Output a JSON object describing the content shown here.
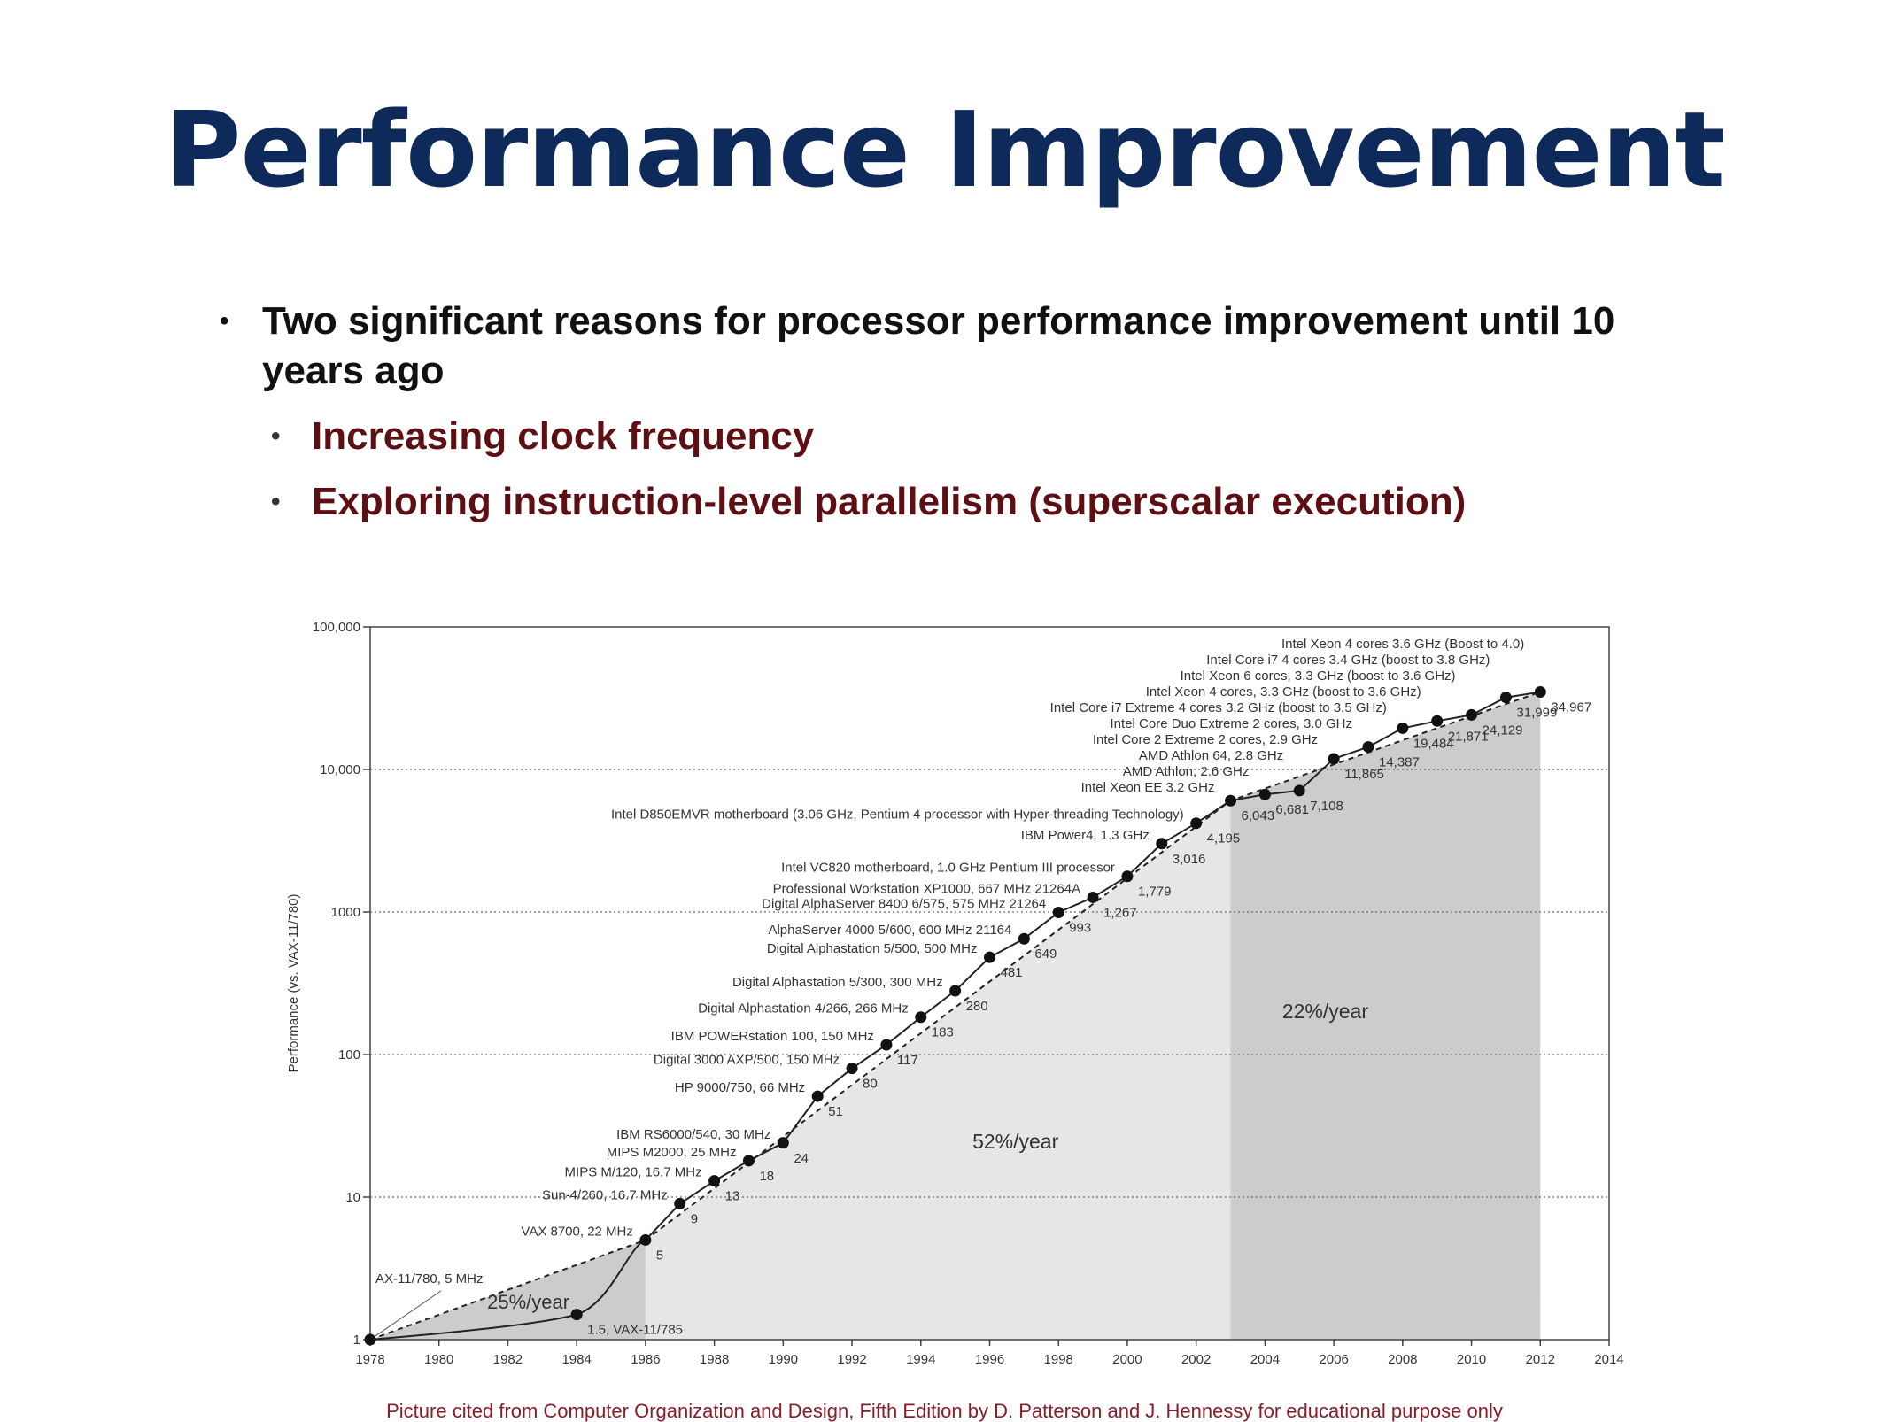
{
  "slide": {
    "title": "Performance Improvement",
    "bullet_main": "Two significant reasons for processor performance improvement until 10 years ago",
    "sub_bullets": [
      "Increasing clock frequency",
      "Exploring instruction-level parallelism (superscalar execution)"
    ],
    "bullet_glyph": "•",
    "caption": "Picture cited from Computer Organization and Design, Fifth Edition by D. Patterson and J. Hennessy for educational purpose only"
  },
  "colors": {
    "title": "#0e2a5a",
    "sub_bullet": "#5e0f14",
    "caption": "#8a1c2a",
    "region_25": "#cccccc",
    "region_52": "#e6e6e6",
    "region_22": "#cccccc"
  },
  "chart_data": {
    "type": "line",
    "scale_y": "log",
    "ylabel": "Performance (vs. VAX-11/780)",
    "xlabel": "",
    "xlim": [
      1978,
      2014
    ],
    "ylim": [
      1,
      100000
    ],
    "x_ticks": [
      "1978",
      "1980",
      "1982",
      "1984",
      "1986",
      "1988",
      "1990",
      "1992",
      "1994",
      "1996",
      "1998",
      "2000",
      "2002",
      "2004",
      "2006",
      "2008",
      "2010",
      "2012",
      "2014"
    ],
    "y_ticks": [
      {
        "value": 1,
        "label": "1"
      },
      {
        "value": 10,
        "label": "10"
      },
      {
        "value": 100,
        "label": "100"
      },
      {
        "value": 1000,
        "label": "1000"
      },
      {
        "value": 10000,
        "label": "10,000"
      },
      {
        "value": 100000,
        "label": "100,000"
      }
    ],
    "grid": "horizontal dotted",
    "regions": [
      {
        "label": "25%/year",
        "x_start": 1978,
        "x_end": 1986
      },
      {
        "label": "52%/year",
        "x_start": 1986,
        "x_end": 2003
      },
      {
        "label": "22%/year",
        "x_start": 2003,
        "x_end": 2012
      }
    ],
    "points": [
      {
        "x": 1978,
        "y": 1,
        "value_label": "",
        "name": "AX-11/780, 5 MHz"
      },
      {
        "x": 1984,
        "y": 1.5,
        "value_label": "1.5, VAX-11/785",
        "name": ""
      },
      {
        "x": 1986,
        "y": 5,
        "value_label": "5",
        "name": "VAX 8700, 22 MHz"
      },
      {
        "x": 1987,
        "y": 9,
        "value_label": "9",
        "name": "Sun-4/260, 16.7 MHz"
      },
      {
        "x": 1988,
        "y": 13,
        "value_label": "13",
        "name": "MIPS M/120, 16.7 MHz"
      },
      {
        "x": 1989,
        "y": 18,
        "value_label": "18",
        "name": "MIPS M2000, 25 MHz"
      },
      {
        "x": 1990,
        "y": 24,
        "value_label": "24",
        "name": "IBM RS6000/540, 30 MHz"
      },
      {
        "x": 1991,
        "y": 51,
        "value_label": "51",
        "name": "HP 9000/750, 66 MHz"
      },
      {
        "x": 1992,
        "y": 80,
        "value_label": "80",
        "name": "Digital 3000 AXP/500, 150 MHz"
      },
      {
        "x": 1993,
        "y": 117,
        "value_label": "117",
        "name": "IBM POWERstation 100, 150 MHz"
      },
      {
        "x": 1994,
        "y": 183,
        "value_label": "183",
        "name": "Digital Alphastation 4/266, 266 MHz"
      },
      {
        "x": 1995,
        "y": 280,
        "value_label": "280",
        "name": "Digital Alphastation 5/300, 300 MHz"
      },
      {
        "x": 1996,
        "y": 481,
        "value_label": "481",
        "name": "Digital Alphastation 5/500, 500 MHz"
      },
      {
        "x": 1997,
        "y": 649,
        "value_label": "649",
        "name": "AlphaServer 4000 5/600, 600 MHz 21164"
      },
      {
        "x": 1998,
        "y": 993,
        "value_label": "993",
        "name": "Digital AlphaServer 8400 6/575, 575 MHz 21264"
      },
      {
        "x": 1999,
        "y": 1267,
        "value_label": "1,267",
        "name": "Professional Workstation XP1000, 667 MHz 21264A"
      },
      {
        "x": 2000,
        "y": 1779,
        "value_label": "1,779",
        "name": "Intel VC820 motherboard, 1.0 GHz Pentium III processor"
      },
      {
        "x": 2001,
        "y": 3016,
        "value_label": "3,016",
        "name": "IBM Power4, 1.3 GHz"
      },
      {
        "x": 2002,
        "y": 4195,
        "value_label": "4,195",
        "name": "Intel D850EMVR motherboard (3.06 GHz, Pentium 4 processor with Hyper-threading Technology)"
      },
      {
        "x": 2003,
        "y": 6043,
        "value_label": "6,043",
        "name": "Intel Xeon EE 3.2 GHz"
      },
      {
        "x": 2004,
        "y": 6681,
        "value_label": "6,681",
        "name": "AMD Athlon, 2.6 GHz"
      },
      {
        "x": 2005,
        "y": 7108,
        "value_label": "7,108",
        "name": "AMD Athlon 64, 2.8 GHz"
      },
      {
        "x": 2006,
        "y": 11865,
        "value_label": "11,865",
        "name": "Intel Core 2 Extreme 2 cores, 2.9 GHz"
      },
      {
        "x": 2007,
        "y": 14387,
        "value_label": "14,387",
        "name": "Intel Core Duo Extreme 2 cores, 3.0 GHz"
      },
      {
        "x": 2008,
        "y": 19484,
        "value_label": "19,484",
        "name": "Intel Core i7 Extreme 4 cores 3.2 GHz (boost to 3.5 GHz)"
      },
      {
        "x": 2009,
        "y": 21871,
        "value_label": "21,871",
        "name": "Intel Xeon 4 cores, 3.3 GHz (boost to 3.6 GHz)"
      },
      {
        "x": 2010,
        "y": 24129,
        "value_label": "24,129",
        "name": "Intel Xeon 6 cores, 3.3 GHz (boost to 3.6 GHz)"
      },
      {
        "x": 2011,
        "y": 31999,
        "value_label": "31,999",
        "name": "Intel Core i7 4 cores 3.4 GHz (boost to 3.8 GHz)"
      },
      {
        "x": 2012,
        "y": 34967,
        "value_label": "34,967",
        "name": "Intel Xeon 4 cores 3.6 GHz (Boost to 4.0)"
      }
    ]
  }
}
